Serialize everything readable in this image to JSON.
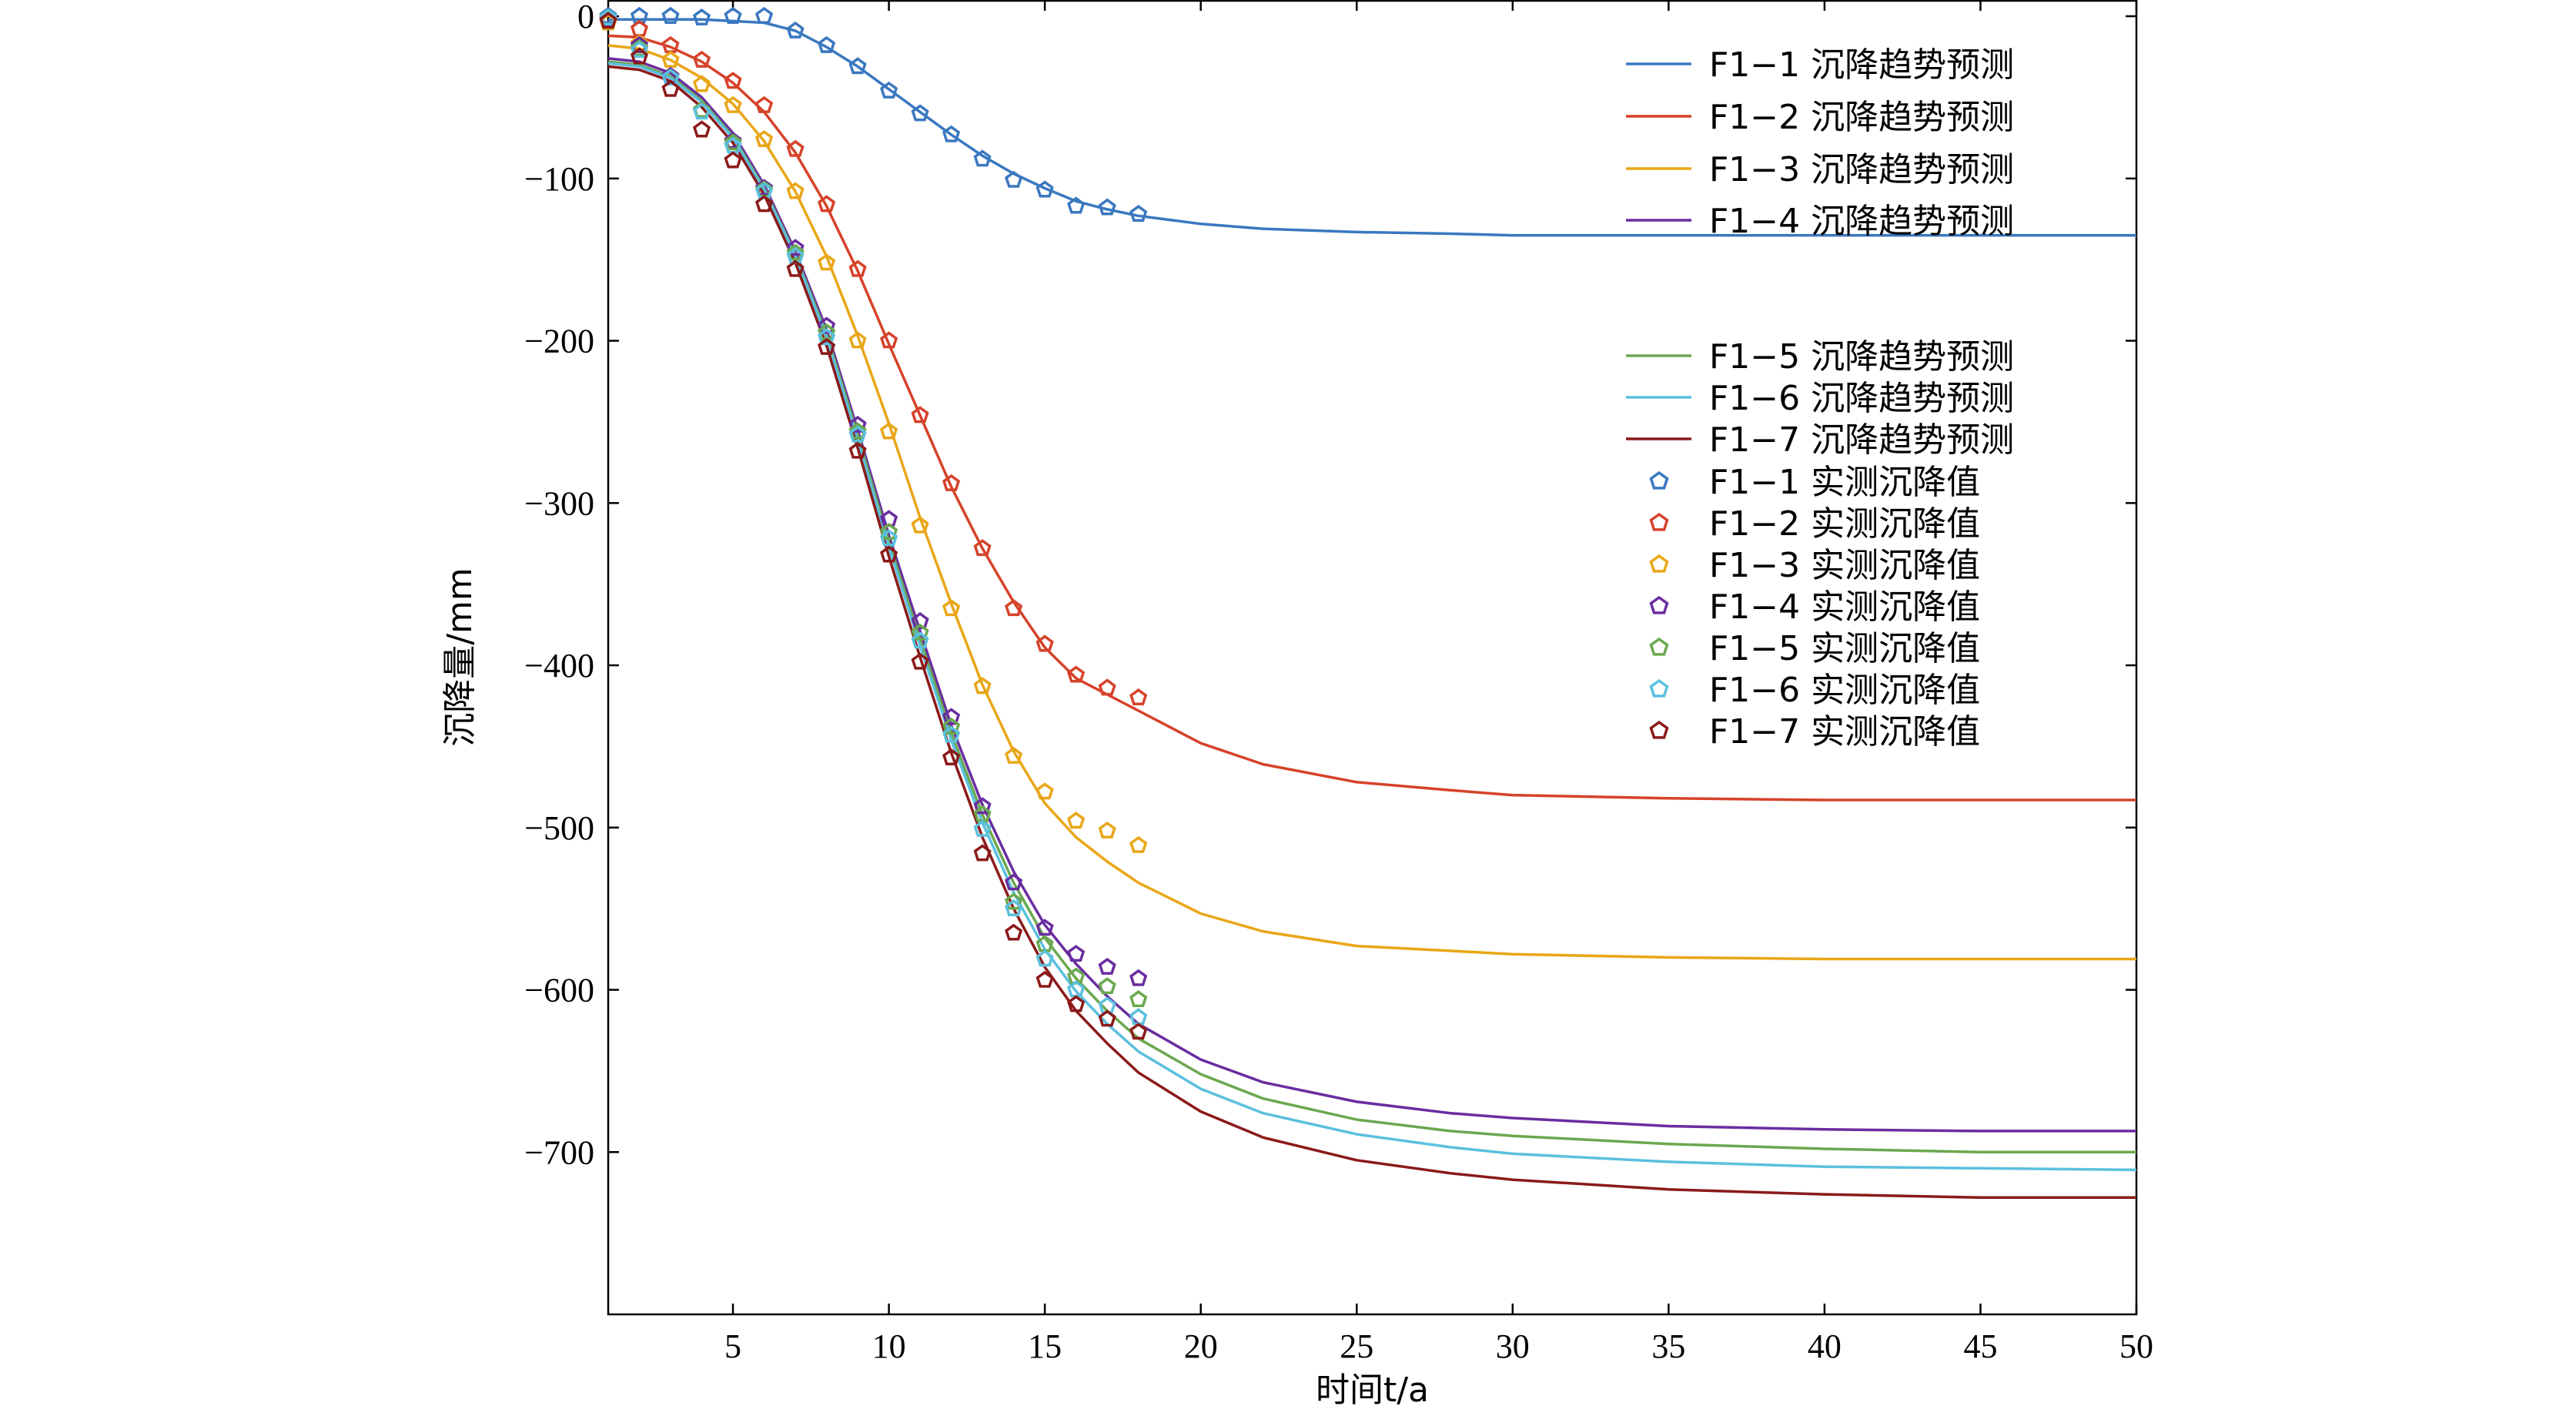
{
  "chart_data": {
    "type": "line",
    "xlabel": "时间t/a",
    "ylabel": "沉降量/mm",
    "xlim": [
      1,
      50
    ],
    "ylim": [
      -800,
      10
    ],
    "xticks": [
      5,
      10,
      15,
      20,
      25,
      30,
      35,
      40,
      45,
      50
    ],
    "yticks": [
      0,
      -100,
      -200,
      -300,
      -400,
      -500,
      -600,
      -700
    ],
    "grid": false,
    "legend_position": "right",
    "series": [
      {
        "name": "F1−1 沉降趋势预测",
        "kind": "line",
        "color": "#3a78c0",
        "x": [
          1,
          2,
          3,
          4,
          5,
          6,
          7,
          8,
          9,
          10,
          11,
          12,
          13,
          14,
          15,
          16,
          17,
          18,
          20,
          22,
          25,
          28,
          30,
          35,
          40,
          45,
          50
        ],
        "y": [
          -2,
          -2,
          -2,
          -2,
          -3,
          -4,
          -9,
          -19,
          -31,
          -45,
          -59,
          -73,
          -86,
          -97,
          -106,
          -114,
          -119,
          -123,
          -128,
          -131,
          -133,
          -134,
          -135,
          -135,
          -135,
          -135,
          -135
        ]
      },
      {
        "name": "F1−2 沉降趋势预测",
        "kind": "line",
        "color": "#d6422a",
        "x": [
          1,
          2,
          3,
          4,
          5,
          6,
          7,
          8,
          9,
          10,
          11,
          12,
          13,
          14,
          15,
          16,
          17,
          18,
          20,
          22,
          25,
          28,
          30,
          35,
          40,
          45,
          50
        ],
        "y": [
          -12,
          -13,
          -19,
          -28,
          -41,
          -59,
          -84,
          -117,
          -157,
          -202,
          -246,
          -290,
          -328,
          -361,
          -389,
          -408,
          -418,
          -428,
          -448,
          -461,
          -472,
          -477,
          -480,
          -482,
          -483,
          -483,
          -483
        ]
      },
      {
        "name": "F1−3 沉降趋势预测",
        "kind": "line",
        "color": "#e9a617",
        "x": [
          1,
          2,
          3,
          4,
          5,
          6,
          7,
          8,
          9,
          10,
          11,
          12,
          13,
          14,
          15,
          16,
          17,
          18,
          20,
          22,
          25,
          28,
          30,
          35,
          40,
          45,
          50
        ],
        "y": [
          -18,
          -20,
          -27,
          -38,
          -54,
          -77,
          -108,
          -148,
          -197,
          -251,
          -309,
          -362,
          -412,
          -453,
          -485,
          -506,
          -521,
          -534,
          -553,
          -564,
          -573,
          -576,
          -578,
          -580,
          -581,
          -581,
          -581
        ]
      },
      {
        "name": "F1−4 沉降趋势预测",
        "kind": "line",
        "color": "#6a2da0",
        "x": [
          1,
          2,
          3,
          4,
          5,
          6,
          7,
          8,
          9,
          10,
          11,
          12,
          13,
          14,
          15,
          16,
          17,
          18,
          20,
          22,
          25,
          28,
          30,
          35,
          40,
          45,
          50
        ],
        "y": [
          -26,
          -28,
          -35,
          -50,
          -72,
          -104,
          -145,
          -193,
          -255,
          -320,
          -379,
          -437,
          -486,
          -527,
          -560,
          -584,
          -604,
          -621,
          -643,
          -657,
          -669,
          -676,
          -679,
          -684,
          -686,
          -687,
          -687
        ]
      },
      {
        "name": "F1−5 沉降趋势预测",
        "kind": "line",
        "color": "#6aa84f",
        "x": [
          1,
          2,
          3,
          4,
          5,
          6,
          7,
          8,
          9,
          10,
          11,
          12,
          13,
          14,
          15,
          16,
          17,
          18,
          20,
          22,
          25,
          28,
          30,
          35,
          40,
          45,
          50
        ],
        "y": [
          -28,
          -30,
          -37,
          -52,
          -74,
          -106,
          -147,
          -196,
          -258,
          -324,
          -384,
          -442,
          -492,
          -534,
          -568,
          -593,
          -613,
          -630,
          -652,
          -667,
          -680,
          -687,
          -690,
          -695,
          -698,
          -700,
          -700
        ]
      },
      {
        "name": "F1−6 沉降趋势预测",
        "kind": "line",
        "color": "#5bc0de",
        "x": [
          1,
          2,
          3,
          4,
          5,
          6,
          7,
          8,
          9,
          10,
          11,
          12,
          13,
          14,
          15,
          16,
          17,
          18,
          20,
          22,
          25,
          28,
          30,
          35,
          40,
          45,
          50
        ],
        "y": [
          -29,
          -31,
          -38,
          -53,
          -75,
          -107,
          -148,
          -198,
          -261,
          -327,
          -388,
          -446,
          -497,
          -540,
          -575,
          -601,
          -621,
          -638,
          -661,
          -676,
          -689,
          -697,
          -701,
          -706,
          -709,
          -710,
          -711
        ]
      },
      {
        "name": "F1−7 沉降趋势预测",
        "kind": "line",
        "color": "#8b1a1a",
        "x": [
          1,
          2,
          3,
          4,
          5,
          6,
          7,
          8,
          9,
          10,
          11,
          12,
          13,
          14,
          15,
          16,
          17,
          18,
          20,
          22,
          25,
          28,
          30,
          35,
          40,
          45,
          50
        ],
        "y": [
          -31,
          -33,
          -40,
          -56,
          -78,
          -110,
          -152,
          -203,
          -266,
          -333,
          -395,
          -454,
          -506,
          -550,
          -586,
          -613,
          -633,
          -651,
          -675,
          -691,
          -705,
          -713,
          -717,
          -723,
          -726,
          -728,
          -728
        ]
      },
      {
        "name": "F1−1 实测沉降值",
        "kind": "marker",
        "color": "#3a78c0",
        "x": [
          1,
          2,
          3,
          4,
          5,
          6,
          7,
          8,
          9,
          10,
          11,
          12,
          13,
          14,
          15,
          16,
          17,
          18
        ],
        "y": [
          0,
          0,
          0,
          -1,
          0,
          0,
          -9,
          -18,
          -31,
          -46,
          -60,
          -73,
          -88,
          -101,
          -107,
          -117,
          -118,
          -122
        ]
      },
      {
        "name": "F1−2 实测沉降值",
        "kind": "marker",
        "color": "#d6422a",
        "x": [
          1,
          2,
          3,
          4,
          5,
          6,
          7,
          8,
          9,
          10,
          11,
          12,
          13,
          14,
          15,
          16,
          17,
          18
        ],
        "y": [
          -3,
          -8,
          -18,
          -27,
          -40,
          -55,
          -82,
          -116,
          -156,
          -200,
          -246,
          -288,
          -328,
          -365,
          -387,
          -406,
          -414,
          -420
        ]
      },
      {
        "name": "F1−3 实测沉降值",
        "kind": "marker",
        "color": "#e9a617",
        "x": [
          1,
          2,
          3,
          4,
          5,
          6,
          7,
          8,
          9,
          10,
          11,
          12,
          13,
          14,
          15,
          16,
          17,
          18
        ],
        "y": [
          -4,
          -17,
          -27,
          -42,
          -55,
          -76,
          -108,
          -152,
          -200,
          -256,
          -314,
          -365,
          -413,
          -456,
          -478,
          -496,
          -502,
          -511
        ]
      },
      {
        "name": "F1−4 实测沉降值",
        "kind": "marker",
        "color": "#6a2da0",
        "x": [
          1,
          2,
          3,
          4,
          5,
          6,
          7,
          8,
          9,
          10,
          11,
          12,
          13,
          14,
          15,
          16,
          17,
          18
        ],
        "y": [
          -2,
          -18,
          -37,
          -58,
          -77,
          -106,
          -143,
          -191,
          -252,
          -310,
          -373,
          -432,
          -487,
          -534,
          -562,
          -578,
          -586,
          -593
        ]
      },
      {
        "name": "F1−5 实测沉降值",
        "kind": "marker",
        "color": "#6aa84f",
        "x": [
          1,
          2,
          3,
          4,
          5,
          6,
          7,
          8,
          9,
          10,
          11,
          12,
          13,
          14,
          15,
          16,
          17,
          18
        ],
        "y": [
          -1,
          -20,
          -38,
          -58,
          -78,
          -107,
          -146,
          -195,
          -256,
          -318,
          -380,
          -438,
          -492,
          -546,
          -572,
          -592,
          -598,
          -606
        ]
      },
      {
        "name": "F1−6 实测沉降值",
        "kind": "marker",
        "color": "#5bc0de",
        "x": [
          1,
          2,
          3,
          4,
          5,
          6,
          7,
          8,
          9,
          10,
          11,
          12,
          13,
          14,
          15,
          16,
          17,
          18
        ],
        "y": [
          -1,
          -21,
          -38,
          -59,
          -80,
          -108,
          -148,
          -198,
          -258,
          -322,
          -385,
          -443,
          -501,
          -550,
          -581,
          -600,
          -610,
          -617
        ]
      },
      {
        "name": "F1−7 实测沉降值",
        "kind": "marker",
        "color": "#8b1a1a",
        "x": [
          1,
          2,
          3,
          4,
          5,
          6,
          7,
          8,
          9,
          10,
          11,
          12,
          13,
          14,
          15,
          16,
          17,
          18
        ],
        "y": [
          -3,
          -25,
          -45,
          -70,
          -89,
          -116,
          -156,
          -204,
          -268,
          -332,
          -398,
          -457,
          -516,
          -565,
          -594,
          -609,
          -618,
          -626
        ]
      }
    ]
  }
}
